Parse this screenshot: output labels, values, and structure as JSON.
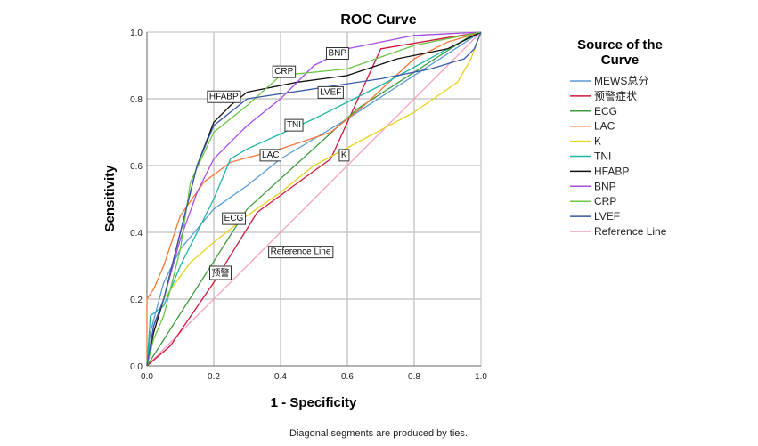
{
  "chart_data": {
    "type": "line",
    "title": "ROC Curve",
    "xlabel": "1 - Specificity",
    "ylabel": "Sensitivity",
    "xlim": [
      0,
      1
    ],
    "ylim": [
      0,
      1
    ],
    "xticks": [
      "0.0",
      "0.2",
      "0.4",
      "0.6",
      "0.8",
      "1.0"
    ],
    "yticks": [
      "0.0",
      "0.2",
      "0.4",
      "0.6",
      "0.8",
      "1.0"
    ],
    "grid": true,
    "legend_title": "Source of the Curve",
    "legend_position": "right",
    "footnote": "Diagonal segments are produced by ties.",
    "series": [
      {
        "name": "MEWS总分",
        "color": "#5b9bd5",
        "label": "",
        "points": [
          [
            0,
            0
          ],
          [
            0.01,
            0.1
          ],
          [
            0.05,
            0.25
          ],
          [
            0.1,
            0.35
          ],
          [
            0.2,
            0.47
          ],
          [
            0.3,
            0.54
          ],
          [
            0.4,
            0.62
          ],
          [
            0.6,
            0.74
          ],
          [
            0.8,
            0.87
          ],
          [
            1,
            1
          ]
        ]
      },
      {
        "name": "预警症状",
        "color": "#d0173d",
        "label": "预警",
        "label_at": [
          0.22,
          0.28
        ],
        "points": [
          [
            0,
            0
          ],
          [
            0.07,
            0.06
          ],
          [
            0.2,
            0.25
          ],
          [
            0.33,
            0.46
          ],
          [
            0.55,
            0.62
          ],
          [
            0.7,
            0.95
          ],
          [
            1,
            1
          ]
        ]
      },
      {
        "name": "ECG",
        "color": "#3c9b3c",
        "label": "ECG",
        "label_at": [
          0.26,
          0.445
        ],
        "points": [
          [
            0,
            0
          ],
          [
            0.3,
            0.47
          ],
          [
            0.63,
            0.77
          ],
          [
            0.97,
            0.99
          ],
          [
            1,
            1
          ]
        ]
      },
      {
        "name": "LAC",
        "color": "#f4793b",
        "label": "LAC",
        "label_at": [
          0.37,
          0.635
        ],
        "points": [
          [
            0,
            0
          ],
          [
            0,
            0.2
          ],
          [
            0.02,
            0.23
          ],
          [
            0.05,
            0.3
          ],
          [
            0.1,
            0.45
          ],
          [
            0.17,
            0.55
          ],
          [
            0.25,
            0.61
          ],
          [
            0.4,
            0.65
          ],
          [
            0.55,
            0.7
          ],
          [
            0.65,
            0.78
          ],
          [
            0.8,
            0.92
          ],
          [
            0.9,
            0.97
          ],
          [
            1,
            1
          ]
        ]
      },
      {
        "name": "K",
        "color": "#e8d320",
        "label": "K",
        "label_at": [
          0.59,
          0.635
        ],
        "points": [
          [
            0,
            0
          ],
          [
            0.02,
            0.1
          ],
          [
            0.05,
            0.2
          ],
          [
            0.13,
            0.31
          ],
          [
            0.2,
            0.37
          ],
          [
            0.3,
            0.45
          ],
          [
            0.4,
            0.52
          ],
          [
            0.5,
            0.6
          ],
          [
            0.65,
            0.68
          ],
          [
            0.8,
            0.76
          ],
          [
            0.93,
            0.85
          ],
          [
            0.97,
            0.92
          ],
          [
            1,
            1
          ]
        ]
      },
      {
        "name": "TNI",
        "color": "#1bb5a6",
        "label": "TNI",
        "label_at": [
          0.44,
          0.725
        ],
        "points": [
          [
            0,
            0
          ],
          [
            0.01,
            0.15
          ],
          [
            0.05,
            0.18
          ],
          [
            0.1,
            0.3
          ],
          [
            0.15,
            0.4
          ],
          [
            0.2,
            0.5
          ],
          [
            0.25,
            0.62
          ],
          [
            0.3,
            0.65
          ],
          [
            0.5,
            0.74
          ],
          [
            0.7,
            0.84
          ],
          [
            0.9,
            0.95
          ],
          [
            1,
            1
          ]
        ]
      },
      {
        "name": "HFABP",
        "color": "#111111",
        "label": "HFABP",
        "label_at": [
          0.23,
          0.81
        ],
        "points": [
          [
            0,
            0
          ],
          [
            0.02,
            0.1
          ],
          [
            0.05,
            0.2
          ],
          [
            0.1,
            0.4
          ],
          [
            0.15,
            0.6
          ],
          [
            0.2,
            0.73
          ],
          [
            0.25,
            0.78
          ],
          [
            0.3,
            0.82
          ],
          [
            0.45,
            0.85
          ],
          [
            0.6,
            0.87
          ],
          [
            0.75,
            0.92
          ],
          [
            0.9,
            0.95
          ],
          [
            1,
            1
          ]
        ]
      },
      {
        "name": "BNP",
        "color": "#a64de8",
        "label": "BNP",
        "label_at": [
          0.57,
          0.94
        ],
        "points": [
          [
            0,
            0
          ],
          [
            0.02,
            0.12
          ],
          [
            0.05,
            0.2
          ],
          [
            0.1,
            0.38
          ],
          [
            0.15,
            0.52
          ],
          [
            0.2,
            0.62
          ],
          [
            0.3,
            0.72
          ],
          [
            0.4,
            0.8
          ],
          [
            0.5,
            0.9
          ],
          [
            0.6,
            0.95
          ],
          [
            0.8,
            0.99
          ],
          [
            1,
            1
          ]
        ]
      },
      {
        "name": "CRP",
        "color": "#6cc644",
        "label": "CRP",
        "label_at": [
          0.41,
          0.885
        ],
        "points": [
          [
            0,
            0
          ],
          [
            0.02,
            0.08
          ],
          [
            0.05,
            0.15
          ],
          [
            0.1,
            0.35
          ],
          [
            0.13,
            0.55
          ],
          [
            0.2,
            0.7
          ],
          [
            0.3,
            0.78
          ],
          [
            0.4,
            0.87
          ],
          [
            0.6,
            0.89
          ],
          [
            0.8,
            0.96
          ],
          [
            1,
            1
          ]
        ]
      },
      {
        "name": "LVEF",
        "color": "#3a5aa8",
        "label": "LVEF",
        "label_at": [
          0.55,
          0.823
        ],
        "points": [
          [
            0,
            0
          ],
          [
            0.02,
            0.12
          ],
          [
            0.05,
            0.2
          ],
          [
            0.1,
            0.4
          ],
          [
            0.15,
            0.6
          ],
          [
            0.2,
            0.72
          ],
          [
            0.3,
            0.8
          ],
          [
            0.5,
            0.83
          ],
          [
            0.7,
            0.86
          ],
          [
            0.85,
            0.89
          ],
          [
            0.95,
            0.92
          ],
          [
            0.98,
            0.95
          ],
          [
            1,
            1
          ]
        ]
      },
      {
        "name": "Reference Line",
        "color": "#f59fc2",
        "label": "Reference Line",
        "label_at": [
          0.46,
          0.345
        ],
        "points": [
          [
            0,
            0
          ],
          [
            1,
            1
          ]
        ]
      }
    ]
  }
}
